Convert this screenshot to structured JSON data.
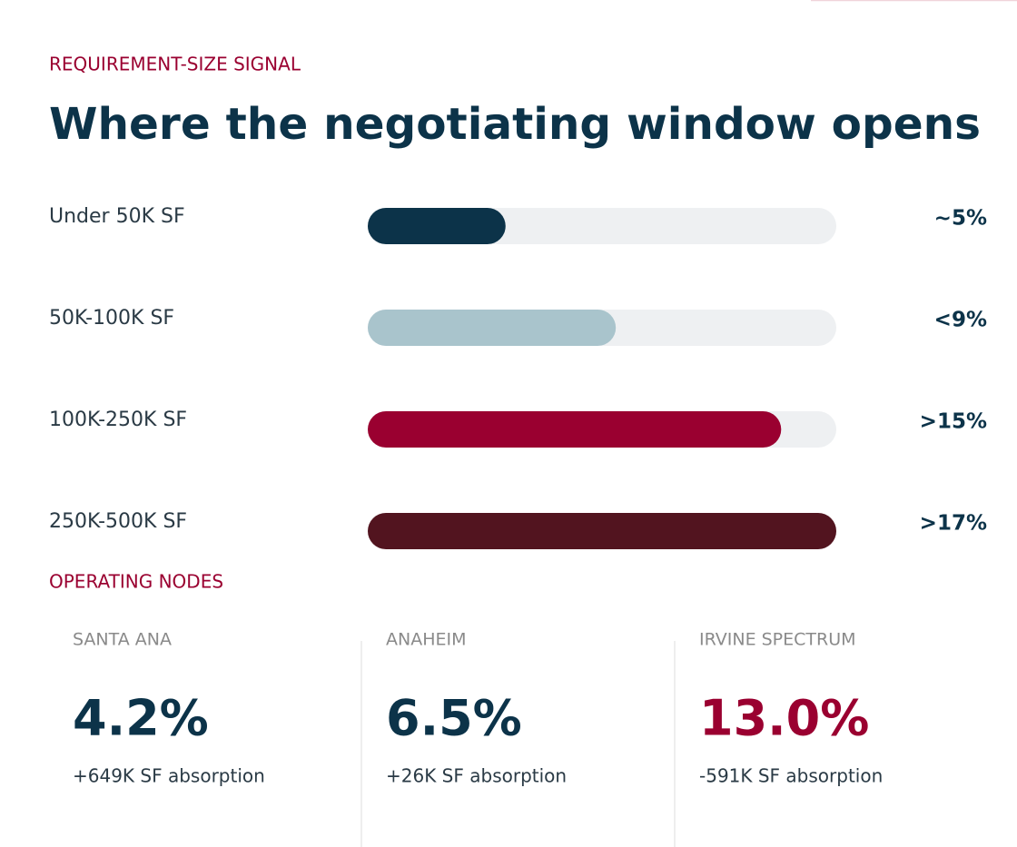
{
  "chart_data": {
    "type": "bar",
    "orientation": "horizontal",
    "eyebrow": "REQUIREMENT-SIZE SIGNAL",
    "title": "Where the negotiating window opens",
    "categories": [
      "Under 50K SF",
      "50K-100K SF",
      "100K-250K SF",
      "250K-500K SF"
    ],
    "values": [
      5,
      9,
      15,
      17
    ],
    "value_labels": [
      "~5%",
      "<9%",
      ">15%",
      ">17%"
    ],
    "colors": [
      "#0c3349",
      "#a9c4cc",
      "#9a0030",
      "#52141f"
    ],
    "track_color": "#eef0f2",
    "xlim": [
      0,
      17
    ]
  },
  "nodes_section": {
    "heading": "OPERATING NODES",
    "nodes": [
      {
        "name": "SANTA ANA",
        "value": "4.2%",
        "note": "+649K SF absorption",
        "color": "#0c3349"
      },
      {
        "name": "ANAHEIM",
        "value": "6.5%",
        "note": "+26K SF absorption",
        "color": "#0c3349"
      },
      {
        "name": "IRVINE SPECTRUM",
        "value": "13.0%",
        "note": "-591K SF absorption",
        "color": "#9a0030"
      }
    ]
  }
}
